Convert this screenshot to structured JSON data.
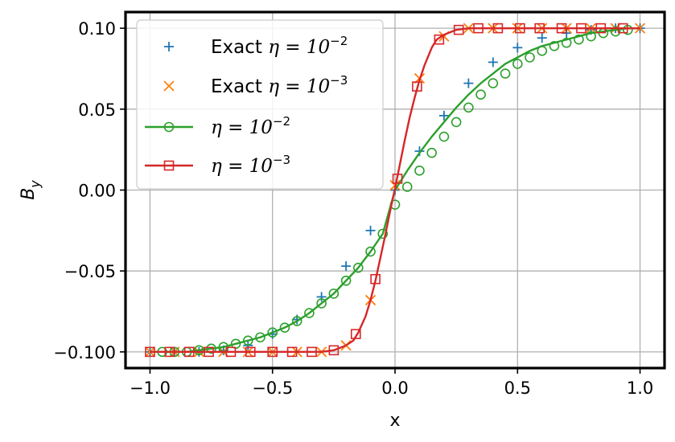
{
  "chart_data": {
    "type": "line",
    "xlabel": "x",
    "ylabel": "B_y",
    "xlim": [
      -1.1,
      1.1
    ],
    "ylim": [
      -0.11,
      0.11
    ],
    "xticks": [
      -1.0,
      -0.5,
      0.0,
      0.5,
      1.0
    ],
    "xtick_labels": [
      "−1.0",
      "−0.5",
      "0.0",
      "0.5",
      "1.0"
    ],
    "yticks": [
      -0.1,
      -0.05,
      0.0,
      0.05,
      0.1
    ],
    "ytick_labels": [
      "−0.100",
      "−0.05",
      "0.00",
      "0.05",
      "0.10"
    ],
    "grid": true,
    "legend_position": "top-left",
    "series": [
      {
        "name": "Exact η = 10⁻²",
        "legend_prefix": "Exact ",
        "legend_math_base": "η = 10",
        "legend_math_exp": "−2",
        "style": "marker-only",
        "marker": "plus",
        "color": "#1f77b4",
        "x": [
          -1.0,
          -0.9,
          -0.8,
          -0.7,
          -0.6,
          -0.5,
          -0.4,
          -0.3,
          -0.2,
          -0.1,
          0.0,
          0.1,
          0.2,
          0.3,
          0.4,
          0.5,
          0.6,
          0.7,
          0.8,
          0.9,
          1.0
        ],
        "y": [
          -0.1,
          -0.1,
          -0.1,
          -0.099,
          -0.096,
          -0.089,
          -0.08,
          -0.066,
          -0.047,
          -0.025,
          0.0,
          0.024,
          0.046,
          0.066,
          0.079,
          0.088,
          0.094,
          0.097,
          0.099,
          0.1,
          0.1
        ]
      },
      {
        "name": "Exact η = 10⁻³",
        "legend_prefix": "Exact ",
        "legend_math_base": "η = 10",
        "legend_math_exp": "−3",
        "style": "marker-only",
        "marker": "x",
        "color": "#ff7f0e",
        "x": [
          -1.0,
          -0.9,
          -0.8,
          -0.7,
          -0.6,
          -0.5,
          -0.4,
          -0.3,
          -0.2,
          -0.1,
          0.0,
          0.1,
          0.2,
          0.3,
          0.4,
          0.5,
          0.6,
          0.7,
          0.8,
          0.9,
          1.0
        ],
        "y": [
          -0.1,
          -0.1,
          -0.1,
          -0.1,
          -0.1,
          -0.1,
          -0.1,
          -0.1,
          -0.096,
          -0.068,
          0.003,
          0.069,
          0.095,
          0.1,
          0.1,
          0.1,
          0.1,
          0.1,
          0.1,
          0.1,
          0.1
        ]
      },
      {
        "name": "η = 10⁻²",
        "legend_prefix": "",
        "legend_math_base": "η = 10",
        "legend_math_exp": "−2",
        "style": "line-marker",
        "marker": "circle",
        "color": "#2ca02c",
        "x": [
          -0.95,
          -0.9,
          -0.85,
          -0.8,
          -0.75,
          -0.7,
          -0.65,
          -0.6,
          -0.55,
          -0.5,
          -0.45,
          -0.4,
          -0.35,
          -0.3,
          -0.25,
          -0.2,
          -0.15,
          -0.1,
          -0.05,
          0.0,
          0.05,
          0.1,
          0.15,
          0.2,
          0.25,
          0.3,
          0.35,
          0.4,
          0.45,
          0.5,
          0.55,
          0.6,
          0.65,
          0.7,
          0.75,
          0.8,
          0.85,
          0.9,
          0.95
        ],
        "y": [
          -0.1,
          -0.1,
          -0.1,
          -0.099,
          -0.098,
          -0.097,
          -0.095,
          -0.093,
          -0.091,
          -0.088,
          -0.085,
          -0.081,
          -0.076,
          -0.07,
          -0.064,
          -0.056,
          -0.048,
          -0.038,
          -0.027,
          -0.009,
          0.002,
          0.012,
          0.023,
          0.033,
          0.042,
          0.051,
          0.059,
          0.066,
          0.072,
          0.078,
          0.082,
          0.086,
          0.089,
          0.091,
          0.093,
          0.095,
          0.097,
          0.098,
          0.099
        ],
        "line_x": [
          -1.0,
          -0.95,
          -0.9,
          -0.85,
          -0.8,
          -0.75,
          -0.7,
          -0.65,
          -0.6,
          -0.55,
          -0.5,
          -0.45,
          -0.4,
          -0.35,
          -0.3,
          -0.25,
          -0.2,
          -0.15,
          -0.1,
          -0.05,
          0.0,
          0.05,
          0.1,
          0.15,
          0.2,
          0.25,
          0.3,
          0.35,
          0.4,
          0.45,
          0.5,
          0.55,
          0.6,
          0.65,
          0.7,
          0.75,
          0.8,
          0.85,
          0.9,
          0.95,
          1.0
        ],
        "line_y": [
          -0.1,
          -0.1,
          -0.1,
          -0.1,
          -0.099,
          -0.098,
          -0.097,
          -0.095,
          -0.093,
          -0.091,
          -0.088,
          -0.085,
          -0.081,
          -0.076,
          -0.07,
          -0.064,
          -0.056,
          -0.048,
          -0.038,
          -0.027,
          0.0,
          0.012,
          0.023,
          0.033,
          0.042,
          0.051,
          0.059,
          0.066,
          0.072,
          0.078,
          0.082,
          0.086,
          0.089,
          0.091,
          0.093,
          0.095,
          0.097,
          0.098,
          0.099,
          0.1,
          0.1
        ]
      },
      {
        "name": "η = 10⁻³",
        "legend_prefix": "",
        "legend_math_base": "η = 10",
        "legend_math_exp": "−3",
        "style": "line-marker",
        "marker": "square",
        "color": "#d62728",
        "x": [
          -1.0,
          -0.92,
          -0.84,
          -0.76,
          -0.67,
          -0.59,
          -0.5,
          -0.42,
          -0.34,
          -0.25,
          -0.16,
          -0.08,
          0.01,
          0.09,
          0.18,
          0.26,
          0.34,
          0.42,
          0.51,
          0.59,
          0.68,
          0.76,
          0.84,
          0.93
        ],
        "y": [
          -0.1,
          -0.1,
          -0.1,
          -0.1,
          -0.1,
          -0.1,
          -0.1,
          -0.1,
          -0.1,
          -0.099,
          -0.089,
          -0.055,
          0.007,
          0.064,
          0.093,
          0.099,
          0.1,
          0.1,
          0.1,
          0.1,
          0.1,
          0.1,
          0.1,
          0.1
        ],
        "line_x": [
          -1.0,
          -0.4,
          -0.3,
          -0.25,
          -0.2,
          -0.17,
          -0.15,
          -0.12,
          -0.1,
          -0.08,
          -0.06,
          -0.04,
          -0.02,
          0.0,
          0.02,
          0.04,
          0.06,
          0.08,
          0.1,
          0.12,
          0.15,
          0.17,
          0.2,
          0.25,
          0.3,
          0.4,
          1.0
        ],
        "line_y": [
          -0.1,
          -0.1,
          -0.1,
          -0.099,
          -0.096,
          -0.093,
          -0.088,
          -0.078,
          -0.068,
          -0.056,
          -0.042,
          -0.028,
          -0.013,
          0.001,
          0.016,
          0.031,
          0.045,
          0.057,
          0.068,
          0.077,
          0.088,
          0.093,
          0.096,
          0.099,
          0.1,
          0.1,
          0.1
        ]
      }
    ]
  }
}
